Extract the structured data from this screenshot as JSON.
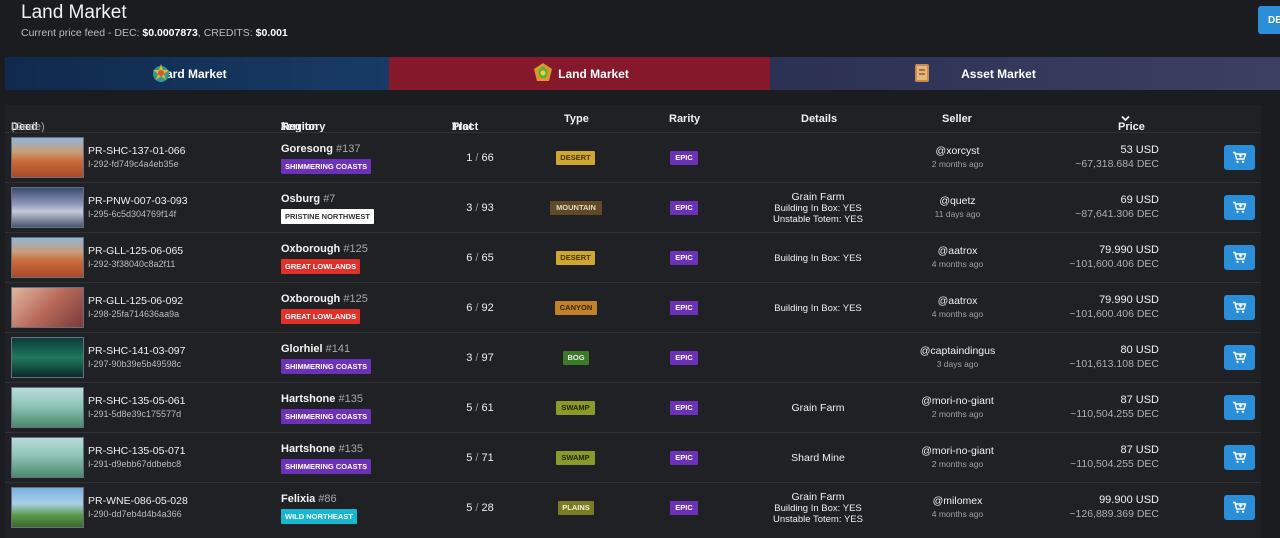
{
  "header": {
    "title": "Land Market",
    "price_feed_label": "Current price feed - DEC:",
    "dec_price": "$0.0007873",
    "credits_label": "CREDITS:",
    "credits_price": "$0.001",
    "corner_button_label": "DE"
  },
  "tabs": [
    {
      "label": "Card Market",
      "icon": "card-market-icon"
    },
    {
      "label": "Land Market",
      "icon": "land-market-icon"
    },
    {
      "label": "Asset Market",
      "icon": "asset-market-icon"
    }
  ],
  "colors": {
    "accent": "#2a8ed8",
    "active_tab": "#85182a",
    "rarity_epic": "#6b32b8"
  },
  "columns": {
    "deed": "Deed",
    "code": "(Code)",
    "region": "Region",
    "territory_sep": "/",
    "territory": "Territory",
    "tract": "Tract",
    "tract_sep": "/",
    "plot": "Plot",
    "type": "Type",
    "rarity": "Rarity",
    "details": "Details",
    "seller": "Seller",
    "price": "Price"
  },
  "rows": [
    {
      "code": "PR-SHC-137-01-066",
      "hash": "I-292-fd749c4a4eb35e",
      "region": "Goresong",
      "region_num": "#137",
      "territory": "SHIMMERING COASTS",
      "tract": "1",
      "plot": "66",
      "type": "DESERT",
      "rarity": "EPIC",
      "details": [],
      "seller": "@xorcyst",
      "time": "2 months ago",
      "usd": "53 USD",
      "dec": "~67,318.684 DEC"
    },
    {
      "code": "PR-PNW-007-03-093",
      "hash": "I-295-6c5d304769f14f",
      "region": "Osburg",
      "region_num": "#7",
      "territory": "PRISTINE NORTHWEST",
      "tract": "3",
      "plot": "93",
      "type": "MOUNTAIN",
      "rarity": "EPIC",
      "details": [
        "Grain Farm",
        "Building In Box: YES",
        "Unstable Totem: YES"
      ],
      "seller": "@quetz",
      "time": "11 days ago",
      "usd": "69 USD",
      "dec": "~87,641.306 DEC"
    },
    {
      "code": "PR-GLL-125-06-065",
      "hash": "I-292-3f38040c8a2f11",
      "region": "Oxborough",
      "region_num": "#125",
      "territory": "GREAT LOWLANDS",
      "tract": "6",
      "plot": "65",
      "type": "DESERT",
      "rarity": "EPIC",
      "details": [
        "Building In Box: YES"
      ],
      "seller": "@aatrox",
      "time": "4 months ago",
      "usd": "79.990 USD",
      "dec": "~101,600.406 DEC"
    },
    {
      "code": "PR-GLL-125-06-092",
      "hash": "I-298-25fa714636aa9a",
      "region": "Oxborough",
      "region_num": "#125",
      "territory": "GREAT LOWLANDS",
      "tract": "6",
      "plot": "92",
      "type": "CANYON",
      "rarity": "EPIC",
      "details": [
        "Building In Box: YES"
      ],
      "seller": "@aatrox",
      "time": "4 months ago",
      "usd": "79.990 USD",
      "dec": "~101,600.406 DEC"
    },
    {
      "code": "PR-SHC-141-03-097",
      "hash": "I-297-90b39e5b49598c",
      "region": "Glorhiel",
      "region_num": "#141",
      "territory": "SHIMMERING COASTS",
      "tract": "3",
      "plot": "97",
      "type": "BOG",
      "rarity": "EPIC",
      "details": [],
      "seller": "@captaindingus",
      "time": "3 days ago",
      "usd": "80 USD",
      "dec": "~101,613.108 DEC"
    },
    {
      "code": "PR-SHC-135-05-061",
      "hash": "I-291-5d8e39c175577d",
      "region": "Hartshone",
      "region_num": "#135",
      "territory": "SHIMMERING COASTS",
      "tract": "5",
      "plot": "61",
      "type": "SWAMP",
      "rarity": "EPIC",
      "details": [
        "Grain Farm"
      ],
      "seller": "@mori-no-giant",
      "time": "2 months ago",
      "usd": "87 USD",
      "dec": "~110,504.255 DEC"
    },
    {
      "code": "PR-SHC-135-05-071",
      "hash": "I-291-d9ebb67ddbebc8",
      "region": "Hartshone",
      "region_num": "#135",
      "territory": "SHIMMERING COASTS",
      "tract": "5",
      "plot": "71",
      "type": "SWAMP",
      "rarity": "EPIC",
      "details": [
        "Shard Mine"
      ],
      "seller": "@mori-no-giant",
      "time": "2 months ago",
      "usd": "87 USD",
      "dec": "~110,504.255 DEC"
    },
    {
      "code": "PR-WNE-086-05-028",
      "hash": "I-290-dd7eb4d4b4a366",
      "region": "Felixia",
      "region_num": "#86",
      "territory": "WILD NORTHEAST",
      "tract": "5",
      "plot": "28",
      "type": "PLAINS",
      "rarity": "EPIC",
      "details": [
        "Grain Farm",
        "Building In Box: YES",
        "Unstable Totem: YES"
      ],
      "seller": "@milomex",
      "time": "4 months ago",
      "usd": "99.900 USD",
      "dec": "~126,889.369 DEC"
    }
  ]
}
